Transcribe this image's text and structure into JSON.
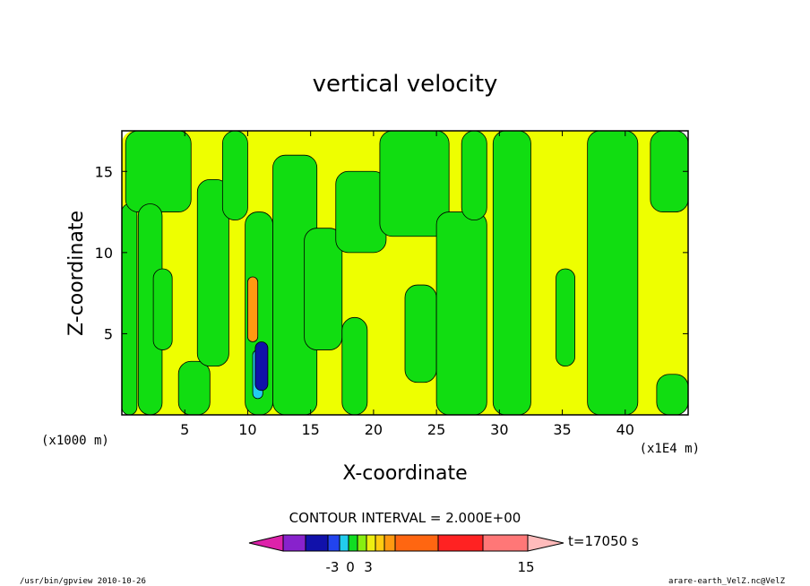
{
  "chart_data": {
    "type": "heatmap",
    "title": "vertical velocity",
    "xlabel": "X-coordinate",
    "ylabel": "Z-coordinate",
    "x_unit": "(x1E4 m)",
    "y_unit": "(x1000 m)",
    "xlim": [
      0,
      45
    ],
    "ylim": [
      0,
      17.5
    ],
    "x_ticks": [
      5,
      10,
      15,
      20,
      25,
      30,
      35,
      40
    ],
    "y_ticks": [
      5,
      10,
      15
    ],
    "contour_interval_label": "CONTOUR INTERVAL = 2.000E+00",
    "time_label": "t=17050 s",
    "colorbar": {
      "bins": [
        {
          "color": "#dd22aa",
          "shape": "arrow-left"
        },
        {
          "color": "#8822cc"
        },
        {
          "color": "#1111aa"
        },
        {
          "color": "#2244ee"
        },
        {
          "color": "#22ccee"
        },
        {
          "color": "#11dd22"
        },
        {
          "color": "#88ee11"
        },
        {
          "color": "#eeee11"
        },
        {
          "color": "#ffcc11"
        },
        {
          "color": "#ff9911"
        },
        {
          "color": "#ff6611"
        },
        {
          "color": "#ff2222"
        },
        {
          "color": "#ff7777"
        },
        {
          "color": "#ffbbbb",
          "shape": "arrow-right"
        }
      ],
      "tick_labels": [
        "-3",
        "0",
        "3",
        "15"
      ]
    },
    "field_colors": {
      "positive": "#eeff00",
      "negative": "#11dd11",
      "strong_up": "#ff9911",
      "strong_down": "#22ccee",
      "core": "#1111aa"
    },
    "regions": [
      {
        "sign": "positive",
        "x": [
          0,
          45
        ],
        "z": [
          0,
          17.5
        ]
      },
      {
        "sign": "negative",
        "x": [
          0,
          1.2
        ],
        "z": [
          0,
          13
        ]
      },
      {
        "sign": "negative",
        "x": [
          0.3,
          5.5
        ],
        "z": [
          12.5,
          17.5
        ]
      },
      {
        "sign": "negative",
        "x": [
          1.3,
          3.2
        ],
        "z": [
          0,
          13
        ]
      },
      {
        "sign": "negative",
        "x": [
          2.5,
          4
        ],
        "z": [
          4,
          9
        ]
      },
      {
        "sign": "negative",
        "x": [
          4.5,
          7
        ],
        "z": [
          0,
          3.3
        ]
      },
      {
        "sign": "negative",
        "x": [
          6,
          8.5
        ],
        "z": [
          3,
          14.5
        ]
      },
      {
        "sign": "negative",
        "x": [
          8,
          10
        ],
        "z": [
          12,
          17.5
        ]
      },
      {
        "sign": "negative",
        "x": [
          9.8,
          12
        ],
        "z": [
          0,
          12.5
        ]
      },
      {
        "sign": "negative",
        "x": [
          12,
          15.5
        ],
        "z": [
          0,
          16
        ]
      },
      {
        "sign": "negative",
        "x": [
          14.5,
          17.5
        ],
        "z": [
          4,
          11.5
        ]
      },
      {
        "sign": "negative",
        "x": [
          17.5,
          19.5
        ],
        "z": [
          0,
          6
        ]
      },
      {
        "sign": "negative",
        "x": [
          17,
          21
        ],
        "z": [
          10,
          15
        ]
      },
      {
        "sign": "negative",
        "x": [
          20.5,
          26
        ],
        "z": [
          11,
          17.5
        ]
      },
      {
        "sign": "negative",
        "x": [
          22.5,
          25
        ],
        "z": [
          2,
          8
        ]
      },
      {
        "sign": "negative",
        "x": [
          25,
          29
        ],
        "z": [
          0,
          12.5
        ]
      },
      {
        "sign": "negative",
        "x": [
          27,
          29
        ],
        "z": [
          12,
          17.5
        ]
      },
      {
        "sign": "negative",
        "x": [
          29.5,
          32.5
        ],
        "z": [
          0,
          17.5
        ]
      },
      {
        "sign": "negative",
        "x": [
          34.5,
          36
        ],
        "z": [
          3,
          9
        ]
      },
      {
        "sign": "negative",
        "x": [
          37,
          41
        ],
        "z": [
          0,
          17.5
        ]
      },
      {
        "sign": "negative",
        "x": [
          42,
          45
        ],
        "z": [
          12.5,
          17.5
        ]
      },
      {
        "sign": "negative",
        "x": [
          42.5,
          45
        ],
        "z": [
          0,
          2.5
        ]
      },
      {
        "sign": "strong_up",
        "x": [
          10,
          10.8
        ],
        "z": [
          4.5,
          8.5
        ]
      },
      {
        "sign": "strong_down",
        "x": [
          10.4,
          11.2
        ],
        "z": [
          1,
          4
        ]
      },
      {
        "sign": "core",
        "x": [
          10.6,
          11.6
        ],
        "z": [
          1.5,
          4.5
        ]
      }
    ]
  },
  "footer": {
    "left": "/usr/bin/gpview   2010-10-26",
    "right": "arare-earth_VelZ.nc@VelZ"
  }
}
